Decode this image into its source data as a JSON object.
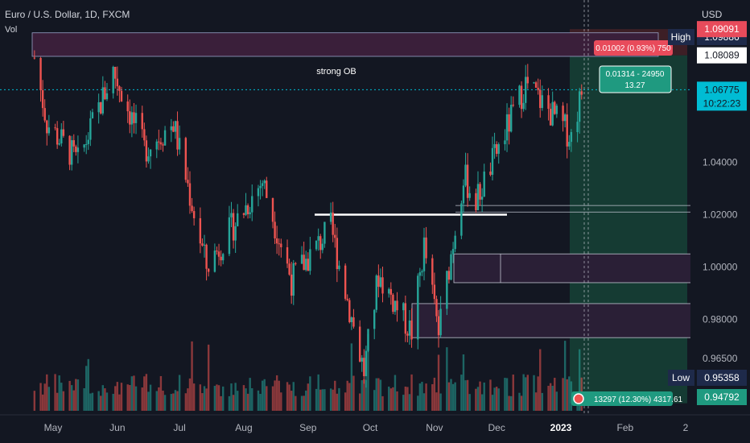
{
  "header": {
    "symbol_line": "Euro / U.S. Dollar, 1D, FXCM",
    "volume_label": "Vol"
  },
  "currency": "USD",
  "colors": {
    "background": "#131722",
    "up": "#26a69a",
    "down": "#ef5350",
    "grid": "#1e222d",
    "axis_text": "#b2b5be",
    "current_price": "#00bcd4",
    "ob_fill": "#3a1f3a",
    "zone_fill": "#2a1f36",
    "profit_fill": "#153b33",
    "loss_fill": "#3d1f26",
    "white": "#ffffff"
  },
  "chart_data": {
    "type": "candlestick",
    "title": "Euro / U.S. Dollar, 1D, FXCM",
    "x_tick_labels": [
      "May",
      "Jun",
      "Jul",
      "Aug",
      "Sep",
      "Oct",
      "Nov",
      "Dec",
      "2023",
      "Feb",
      "2"
    ],
    "y_tick_labels": [
      "1.04000",
      "1.02000",
      "1.00000",
      "0.98000",
      "0.96500"
    ],
    "y_ticks": [
      1.04,
      1.02,
      1.0,
      0.98,
      0.965
    ],
    "ylim": [
      0.9435,
      1.1005
    ],
    "grid": false,
    "ohlc_approx": {
      "points": [
        [
          "2022-04-22",
          1.08
        ],
        [
          "2022-04-28",
          1.055
        ],
        [
          "2022-05-13",
          1.04
        ],
        [
          "2022-05-30",
          1.075
        ],
        [
          "2022-06-14",
          1.045
        ],
        [
          "2022-06-28",
          1.055
        ],
        [
          "2022-07-14",
          1.0
        ],
        [
          "2022-08-10",
          1.033
        ],
        [
          "2022-08-24",
          0.995
        ],
        [
          "2022-09-12",
          1.015
        ],
        [
          "2022-09-28",
          0.96
        ],
        [
          "2022-10-05",
          0.997
        ],
        [
          "2022-10-21",
          0.975
        ],
        [
          "2022-10-27",
          1.008
        ],
        [
          "2022-11-03",
          0.975
        ],
        [
          "2022-11-15",
          1.035
        ],
        [
          "2022-11-21",
          1.025
        ],
        [
          "2022-12-15",
          1.07
        ],
        [
          "2023-01-06",
          1.05
        ],
        [
          "2023-01-11",
          1.067
        ]
      ]
    },
    "price_labels": [
      {
        "label": "High",
        "value": "1.09886",
        "price": 1.09886
      },
      {
        "value": "1.09091",
        "price": 1.09091
      },
      {
        "value": "1.08089",
        "price": 1.08089
      },
      {
        "value": "1.06775",
        "price": 1.06775,
        "countdown": "10:22:23"
      },
      {
        "label": "Low",
        "value": "0.95358",
        "price": 0.95358
      },
      {
        "value": "0.94792",
        "price": 0.94792
      }
    ],
    "annotations": {
      "strong_ob": "strong OB",
      "position_loss": "0.01002 (0.93%) 750",
      "position_profit_line1": "0.01314 - 24950",
      "position_profit_line2": "13.27",
      "volume_readout": "13297 (12.30%) 4317.61"
    },
    "zones": [
      {
        "kind": "strong-ob",
        "top": 1.0895,
        "bottom": 1.0805
      },
      {
        "kind": "line-top",
        "price": 1.0235
      },
      {
        "kind": "line-bottom",
        "price": 1.021
      },
      {
        "kind": "rect",
        "top": 1.005,
        "bottom": 0.994
      },
      {
        "kind": "rect",
        "top": 0.986,
        "bottom": 0.973
      },
      {
        "kind": "white-line",
        "price": 1.02
      },
      {
        "kind": "current-price",
        "price": 1.06775
      }
    ],
    "position": {
      "entry": 1.08089,
      "stop": 1.09091,
      "target": 0.94792
    }
  }
}
